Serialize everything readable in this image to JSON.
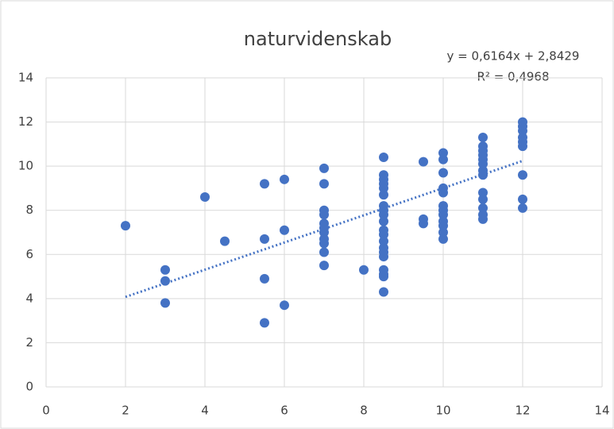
{
  "chart_data": {
    "type": "scatter",
    "title": "naturvidenskab",
    "annotations": [
      "y = 0,6164x + 2,8429",
      "R² = 0,4968"
    ],
    "trendline": {
      "slope": 0.6164,
      "intercept": 2.8429
    },
    "color": "#4472c4",
    "x": [
      2,
      3,
      3,
      3,
      4,
      4.5,
      5.5,
      5.5,
      5.5,
      5.5,
      6,
      6,
      6,
      7,
      7,
      7,
      7,
      7,
      7,
      7,
      7,
      7,
      7,
      7,
      8,
      8.5,
      8.5,
      8.5,
      8.5,
      8.5,
      8.5,
      8.5,
      8.5,
      8.5,
      8.5,
      8.5,
      8.5,
      8.5,
      8.5,
      8.5,
      8.5,
      8.5,
      8.5,
      8.5,
      8.5,
      9.5,
      9.5,
      9.5,
      10,
      10,
      10,
      10,
      10,
      10,
      10,
      10,
      10,
      10,
      10,
      10,
      11,
      11,
      11,
      11,
      11,
      11,
      11,
      11,
      11,
      11,
      11,
      11,
      11,
      12,
      12,
      12,
      12,
      12,
      12,
      12,
      12,
      12
    ],
    "values": [
      7.3,
      5.3,
      4.8,
      3.8,
      8.6,
      6.6,
      9.2,
      6.7,
      4.9,
      2.9,
      9.4,
      7.1,
      3.7,
      9.9,
      9.2,
      8.0,
      7.8,
      7.4,
      7.2,
      7.0,
      6.7,
      6.5,
      6.1,
      5.5,
      5.3,
      10.4,
      9.6,
      9.4,
      9.2,
      9.0,
      8.7,
      8.2,
      8.0,
      7.8,
      7.5,
      7.1,
      6.9,
      6.6,
      6.3,
      6.1,
      5.9,
      5.3,
      5.1,
      5.0,
      4.3,
      10.2,
      7.6,
      7.4,
      10.6,
      10.3,
      9.7,
      9.0,
      8.8,
      8.2,
      8.0,
      7.8,
      7.5,
      7.3,
      7.0,
      6.7,
      11.3,
      10.9,
      10.7,
      10.5,
      10.3,
      10.1,
      9.8,
      9.6,
      8.8,
      8.5,
      8.1,
      7.8,
      7.6,
      12.0,
      11.8,
      11.6,
      11.3,
      11.1,
      10.9,
      9.6,
      8.5,
      8.1
    ],
    "xlim": [
      0,
      14
    ],
    "xticks": [
      0,
      2,
      4,
      6,
      8,
      10,
      12,
      14
    ],
    "ylim": [
      0,
      14
    ],
    "yticks": [
      0,
      2,
      4,
      6,
      8,
      10,
      12,
      14
    ],
    "grid": true
  }
}
